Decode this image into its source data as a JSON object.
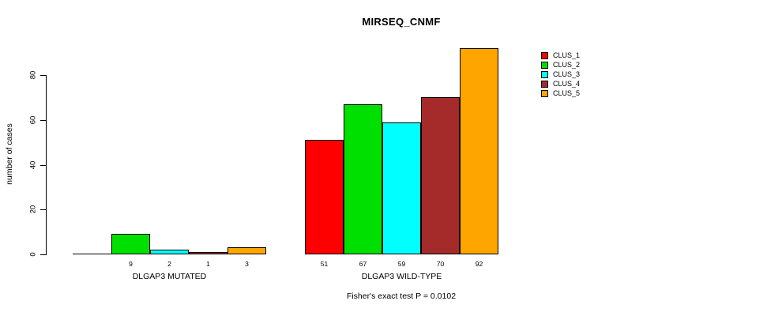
{
  "chart_data": {
    "type": "bar",
    "title": "MIRSEQ_CNMF",
    "ylabel": "number of cases",
    "xlabel": "",
    "yticks": [
      0,
      20,
      40,
      60,
      80
    ],
    "ylim": [
      0,
      92
    ],
    "grid": false,
    "legend_position": "right",
    "footnote": "Fisher's exact test P = 0.0102",
    "series": [
      {
        "name": "CLUS_1",
        "color": "#FF0000"
      },
      {
        "name": "CLUS_2",
        "color": "#00E000"
      },
      {
        "name": "CLUS_3",
        "color": "#00FFFF"
      },
      {
        "name": "CLUS_4",
        "color": "#A52A2A"
      },
      {
        "name": "CLUS_5",
        "color": "#FFA500"
      }
    ],
    "groups": [
      {
        "label": "DLGAP3 MUTATED",
        "values": [
          0,
          9,
          2,
          1,
          3
        ],
        "bar_labels": [
          "",
          "9",
          "2",
          "1",
          "3"
        ]
      },
      {
        "label": "DLGAP3 WILD-TYPE",
        "values": [
          51,
          67,
          59,
          70,
          92
        ],
        "bar_labels": [
          "51",
          "67",
          "59",
          "70",
          "92"
        ]
      }
    ]
  }
}
